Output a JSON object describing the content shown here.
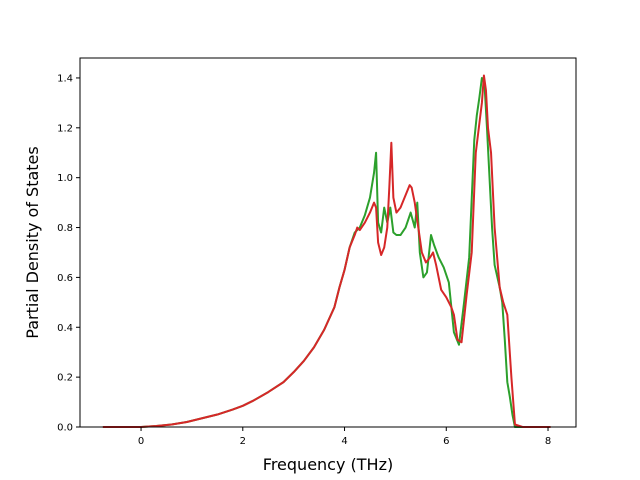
{
  "chart_data": {
    "type": "line",
    "title": "",
    "xlabel": "Frequency (THz)",
    "ylabel": "Partial Density of States",
    "xlim": [
      -1.2,
      8.55
    ],
    "ylim": [
      0.0,
      1.48
    ],
    "xticks": [
      0,
      2,
      4,
      6,
      8
    ],
    "xtick_labels": [
      "0",
      "2",
      "4",
      "6",
      "8"
    ],
    "yticks": [
      0.0,
      0.2,
      0.4,
      0.6,
      0.8,
      1.0,
      1.2,
      1.4
    ],
    "ytick_labels": [
      "0.0",
      "0.2",
      "0.4",
      "0.6",
      "0.8",
      "1.0",
      "1.2",
      "1.4"
    ],
    "grid": false,
    "legend": false,
    "series": [
      {
        "color": "#2ca02c",
        "x": [
          -0.75,
          0.0,
          0.3,
          0.6,
          0.9,
          1.2,
          1.5,
          1.8,
          2.0,
          2.2,
          2.5,
          2.8,
          3.0,
          3.2,
          3.4,
          3.6,
          3.8,
          3.9,
          4.0,
          4.1,
          4.2,
          4.3,
          4.4,
          4.5,
          4.58,
          4.62,
          4.66,
          4.72,
          4.78,
          4.84,
          4.9,
          4.96,
          5.02,
          5.1,
          5.2,
          5.3,
          5.38,
          5.43,
          5.48,
          5.55,
          5.62,
          5.7,
          5.76,
          5.85,
          5.95,
          6.05,
          6.15,
          6.25,
          6.35,
          6.45,
          6.55,
          6.6,
          6.65,
          6.7,
          6.75,
          6.8,
          6.85,
          6.9,
          6.95,
          7.05,
          7.1,
          7.15,
          7.2,
          7.25,
          7.3,
          7.35,
          7.5,
          8.05
        ],
        "y": [
          0.0,
          0.0,
          0.004,
          0.01,
          0.02,
          0.035,
          0.05,
          0.07,
          0.085,
          0.105,
          0.14,
          0.18,
          0.22,
          0.265,
          0.32,
          0.39,
          0.48,
          0.56,
          0.63,
          0.72,
          0.78,
          0.8,
          0.85,
          0.92,
          1.02,
          1.1,
          0.82,
          0.78,
          0.88,
          0.82,
          0.88,
          0.78,
          0.77,
          0.77,
          0.8,
          0.86,
          0.8,
          0.9,
          0.7,
          0.6,
          0.62,
          0.77,
          0.73,
          0.68,
          0.64,
          0.58,
          0.38,
          0.33,
          0.5,
          0.68,
          1.15,
          1.25,
          1.32,
          1.4,
          1.38,
          1.2,
          1.0,
          0.8,
          0.65,
          0.56,
          0.5,
          0.35,
          0.18,
          0.12,
          0.05,
          0.0,
          0.0,
          0.0
        ]
      },
      {
        "color": "#d62728",
        "x": [
          -0.75,
          0.0,
          0.3,
          0.6,
          0.9,
          1.2,
          1.5,
          1.8,
          2.0,
          2.2,
          2.5,
          2.8,
          3.0,
          3.2,
          3.4,
          3.6,
          3.8,
          3.9,
          4.0,
          4.1,
          4.2,
          4.25,
          4.3,
          4.4,
          4.5,
          4.58,
          4.62,
          4.66,
          4.72,
          4.78,
          4.84,
          4.88,
          4.92,
          4.96,
          5.02,
          5.1,
          5.2,
          5.28,
          5.32,
          5.38,
          5.45,
          5.52,
          5.6,
          5.68,
          5.74,
          5.8,
          5.9,
          6.0,
          6.1,
          6.15,
          6.22,
          6.3,
          6.4,
          6.5,
          6.58,
          6.64,
          6.7,
          6.74,
          6.78,
          6.82,
          6.88,
          6.95,
          7.05,
          7.12,
          7.2,
          7.28,
          7.35,
          7.5,
          8.05
        ],
        "y": [
          0.0,
          0.0,
          0.004,
          0.01,
          0.02,
          0.035,
          0.05,
          0.07,
          0.085,
          0.105,
          0.14,
          0.18,
          0.22,
          0.265,
          0.32,
          0.39,
          0.48,
          0.56,
          0.63,
          0.72,
          0.77,
          0.8,
          0.79,
          0.82,
          0.86,
          0.9,
          0.88,
          0.74,
          0.69,
          0.72,
          0.8,
          0.96,
          1.14,
          0.92,
          0.86,
          0.88,
          0.93,
          0.97,
          0.96,
          0.9,
          0.8,
          0.7,
          0.66,
          0.68,
          0.7,
          0.65,
          0.55,
          0.52,
          0.48,
          0.45,
          0.35,
          0.34,
          0.53,
          0.7,
          1.1,
          1.2,
          1.3,
          1.41,
          1.35,
          1.2,
          1.1,
          0.8,
          0.56,
          0.5,
          0.45,
          0.2,
          0.01,
          0.0,
          0.0
        ]
      }
    ]
  }
}
